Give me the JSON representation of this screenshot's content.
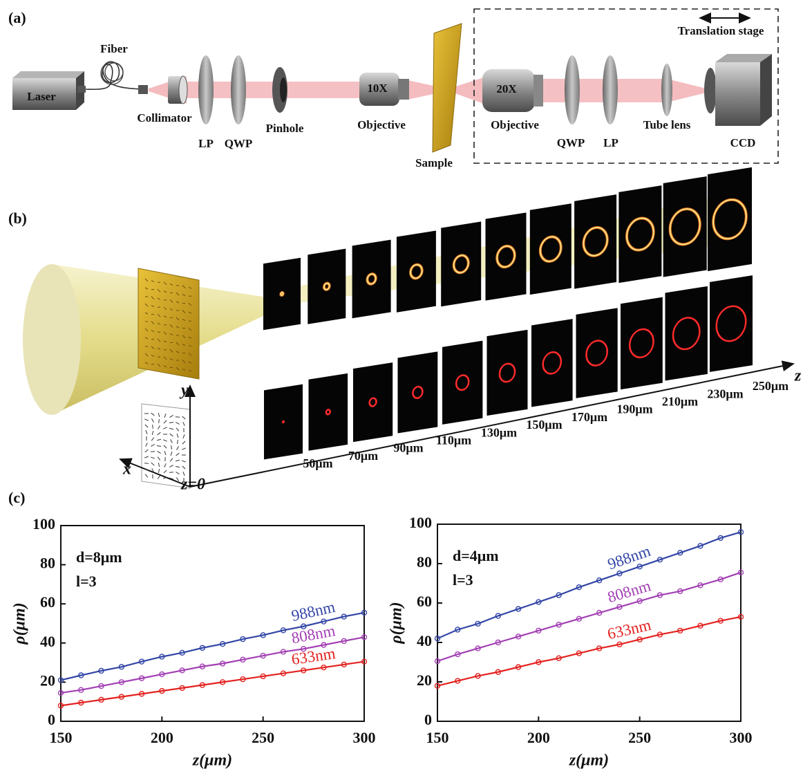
{
  "panel_labels": [
    "(a)",
    "(b)",
    "(c)"
  ],
  "setup": {
    "laser": "Laser",
    "fiber": "Fiber",
    "collimator": "Collimator",
    "polarizer_1": "LP",
    "waveplate_1": "QWP",
    "pinhole": "Pinhole",
    "objective_1_mag": "10X",
    "objective_1": "Objective",
    "sample": "Sample",
    "objective_2_mag": "20X",
    "objective_2": "Objective",
    "waveplate_2": "QWP",
    "polarizer_2": "LP",
    "tube_lens": "Tube lens",
    "camera": "CCD",
    "stage": "Translation stage"
  },
  "propagation": {
    "axis_y": "y",
    "axis_x": "x",
    "axis_z": "z",
    "origin": "z=0",
    "distances": [
      "50μm",
      "70μm",
      "90μm",
      "110μm",
      "130μm",
      "150μm",
      "170μm",
      "190μm",
      "210μm",
      "230μm",
      "250μm"
    ]
  },
  "chart_data": [
    {
      "type": "line",
      "annotations": [
        "d=8μm",
        "l=3"
      ],
      "xlabel": "z(μm)",
      "ylabel": "ρ(μm)",
      "x": [
        150,
        160,
        170,
        180,
        190,
        200,
        210,
        220,
        230,
        240,
        250,
        260,
        270,
        280,
        290,
        300
      ],
      "series": [
        {
          "name": "988nm",
          "color": "#3346a6",
          "values": [
            21,
            23.5,
            25.8,
            27.8,
            30.5,
            33,
            35,
            37.5,
            39.5,
            42,
            44,
            46.5,
            48.5,
            51,
            53.5,
            55.5
          ]
        },
        {
          "name": "808nm",
          "color": "#a23fb3",
          "values": [
            14.5,
            16,
            18,
            20,
            22,
            24,
            26,
            28,
            29.5,
            31.5,
            33.5,
            35.5,
            37,
            39,
            41,
            43
          ]
        },
        {
          "name": "633nm",
          "color": "#e3211f",
          "values": [
            8,
            9.5,
            11,
            12.5,
            14,
            15.5,
            17,
            18.5,
            20,
            21.5,
            23,
            24.5,
            26,
            27.5,
            29,
            30.5
          ]
        }
      ],
      "xlim": [
        150,
        300
      ],
      "ylim": [
        0,
        100
      ],
      "xticks": [
        150,
        200,
        250,
        300
      ],
      "yticks": [
        0,
        20,
        40,
        60,
        80,
        100
      ]
    },
    {
      "type": "line",
      "annotations": [
        "d=4μm",
        "l=3"
      ],
      "xlabel": "z(μm)",
      "ylabel": "ρ(μm)",
      "x": [
        150,
        160,
        170,
        180,
        190,
        200,
        210,
        220,
        230,
        240,
        250,
        260,
        270,
        280,
        290,
        300
      ],
      "series": [
        {
          "name": "988nm",
          "color": "#3346a6",
          "values": [
            42,
            46.5,
            49.5,
            53.5,
            57,
            60.5,
            64,
            68,
            71.5,
            75,
            78.5,
            82,
            85.5,
            89,
            93,
            96
          ]
        },
        {
          "name": "808nm",
          "color": "#a23fb3",
          "values": [
            30.5,
            34,
            37,
            40,
            43,
            46,
            49,
            52,
            55,
            58,
            61,
            64,
            66,
            69,
            72,
            75.5
          ]
        },
        {
          "name": "633nm",
          "color": "#e3211f",
          "values": [
            18,
            20.5,
            23,
            25,
            27.5,
            30,
            32,
            34.5,
            37,
            39,
            41.5,
            44,
            46,
            48.5,
            51,
            53
          ]
        }
      ],
      "xlim": [
        150,
        300
      ],
      "ylim": [
        0,
        100
      ],
      "xticks": [
        150,
        200,
        250,
        300
      ],
      "yticks": [
        0,
        20,
        40,
        60,
        80,
        100
      ]
    }
  ]
}
